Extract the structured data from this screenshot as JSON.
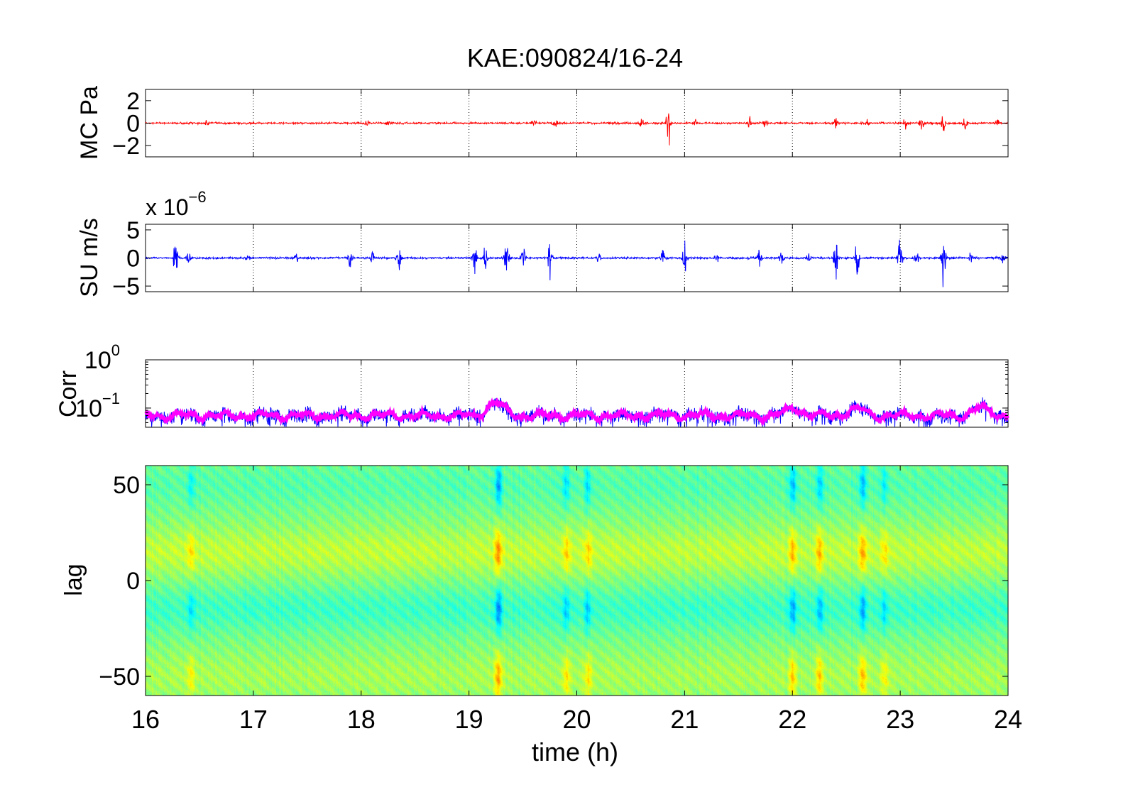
{
  "figure": {
    "title": "KAE:090824/16-24",
    "xlabel": "time (h)",
    "x_ticks": [
      "16",
      "17",
      "18",
      "19",
      "20",
      "21",
      "22",
      "23",
      "24"
    ]
  },
  "chart_data": [
    {
      "type": "line",
      "ylabel": "MC Pa",
      "color": "#ff0000",
      "xlim": [
        16,
        24
      ],
      "ylim": [
        -3,
        3
      ],
      "y_ticks": [
        {
          "v": 2,
          "label": "2"
        },
        {
          "v": 0,
          "label": "0"
        },
        {
          "v": -2,
          "label": "−2"
        }
      ],
      "grid": "x-dotted",
      "series": [
        {
          "baseline_amplitude": 0.12,
          "bursts": [
            {
              "t": 16.57,
              "amp": 0.3
            },
            {
              "t": 18.05,
              "amp": 0.35
            },
            {
              "t": 18.25,
              "amp": 0.3
            },
            {
              "t": 19.6,
              "amp": 0.5
            },
            {
              "t": 19.8,
              "amp": 0.6
            },
            {
              "t": 20.6,
              "amp": 0.6
            },
            {
              "t": 20.85,
              "amp": 2.8
            },
            {
              "t": 21.1,
              "amp": 0.4
            },
            {
              "t": 21.6,
              "amp": 0.8
            },
            {
              "t": 21.75,
              "amp": 0.6
            },
            {
              "t": 22.4,
              "amp": 0.5
            },
            {
              "t": 22.7,
              "amp": 0.4
            },
            {
              "t": 23.05,
              "amp": 1.0
            },
            {
              "t": 23.2,
              "amp": 0.9
            },
            {
              "t": 23.4,
              "amp": 1.1
            },
            {
              "t": 23.6,
              "amp": 0.9
            },
            {
              "t": 23.9,
              "amp": 0.4
            }
          ]
        }
      ]
    },
    {
      "type": "line",
      "ylabel": "SU m/s",
      "scale_label": {
        "base": "x 10",
        "exponent": "−6"
      },
      "color": "#0000ff",
      "xlim": [
        16,
        24
      ],
      "ylim": [
        -6,
        6
      ],
      "y_ticks": [
        {
          "v": 5,
          "label": "5"
        },
        {
          "v": 0,
          "label": "0"
        },
        {
          "v": -5,
          "label": "−5"
        }
      ],
      "grid": "x-dotted",
      "series": [
        {
          "baseline_amplitude": 0.25,
          "bursts": [
            {
              "t": 16.28,
              "amp": 5.8
            },
            {
              "t": 16.4,
              "amp": 2.0
            },
            {
              "t": 16.95,
              "amp": 1.2
            },
            {
              "t": 17.4,
              "amp": 1.0
            },
            {
              "t": 17.9,
              "amp": 2.5
            },
            {
              "t": 18.1,
              "amp": 1.5
            },
            {
              "t": 18.35,
              "amp": 4.0
            },
            {
              "t": 19.05,
              "amp": 5.5
            },
            {
              "t": 19.15,
              "amp": 3.5
            },
            {
              "t": 19.35,
              "amp": 5.0
            },
            {
              "t": 19.5,
              "amp": 3.5
            },
            {
              "t": 19.75,
              "amp": 5.0
            },
            {
              "t": 20.2,
              "amp": 1.2
            },
            {
              "t": 20.8,
              "amp": 2.5
            },
            {
              "t": 21.0,
              "amp": 5.5
            },
            {
              "t": 21.3,
              "amp": 1.5
            },
            {
              "t": 21.7,
              "amp": 2.5
            },
            {
              "t": 21.9,
              "amp": 1.8
            },
            {
              "t": 22.15,
              "amp": 1.5
            },
            {
              "t": 22.4,
              "amp": 5.5
            },
            {
              "t": 22.6,
              "amp": 6.0
            },
            {
              "t": 23.0,
              "amp": 5.8
            },
            {
              "t": 23.15,
              "amp": 2.5
            },
            {
              "t": 23.4,
              "amp": 6.0
            },
            {
              "t": 23.65,
              "amp": 1.5
            },
            {
              "t": 23.95,
              "amp": 1.5
            }
          ]
        }
      ]
    },
    {
      "type": "line",
      "ylabel": "Corr",
      "y_scale": "log",
      "xlim": [
        16,
        24
      ],
      "ylim": [
        0.04,
        1
      ],
      "y_ticks": [
        {
          "v": 1,
          "label": "10",
          "exp": "0"
        },
        {
          "v": 0.1,
          "label": "10",
          "exp": "−1"
        }
      ],
      "grid": "x-dotted",
      "series": [
        {
          "color": "#0000ff",
          "style": "noisy",
          "baseline": 0.07
        },
        {
          "color": "#ff00ff",
          "style": "smoothed",
          "baseline": 0.07
        }
      ],
      "peaks": [
        {
          "t": 19.25,
          "value": 0.13
        },
        {
          "t": 22.0,
          "value": 0.1
        },
        {
          "t": 22.6,
          "value": 0.1
        },
        {
          "t": 23.75,
          "value": 0.1
        }
      ]
    },
    {
      "type": "heatmap",
      "ylabel": "lag",
      "xlim": [
        16,
        24
      ],
      "ylim": [
        -60,
        60
      ],
      "y_ticks": [
        {
          "v": 50,
          "label": "50"
        },
        {
          "v": 0,
          "label": "0"
        },
        {
          "v": -50,
          "label": "−50"
        }
      ],
      "colormap": "jet",
      "bands": [
        {
          "lag_center": 15,
          "sign": "positive"
        },
        {
          "lag_center": -15,
          "sign": "negative"
        },
        {
          "lag_center": -50,
          "sign": "positive"
        },
        {
          "lag_center": 50,
          "sign": "negative"
        }
      ],
      "hotspots": [
        {
          "t": 16.42,
          "strength": 0.5
        },
        {
          "t": 19.27,
          "strength": 1.0
        },
        {
          "t": 19.9,
          "strength": 0.6
        },
        {
          "t": 20.1,
          "strength": 0.6
        },
        {
          "t": 22.0,
          "strength": 0.8
        },
        {
          "t": 22.25,
          "strength": 0.75
        },
        {
          "t": 22.65,
          "strength": 0.85
        },
        {
          "t": 22.85,
          "strength": 0.5
        }
      ]
    }
  ]
}
